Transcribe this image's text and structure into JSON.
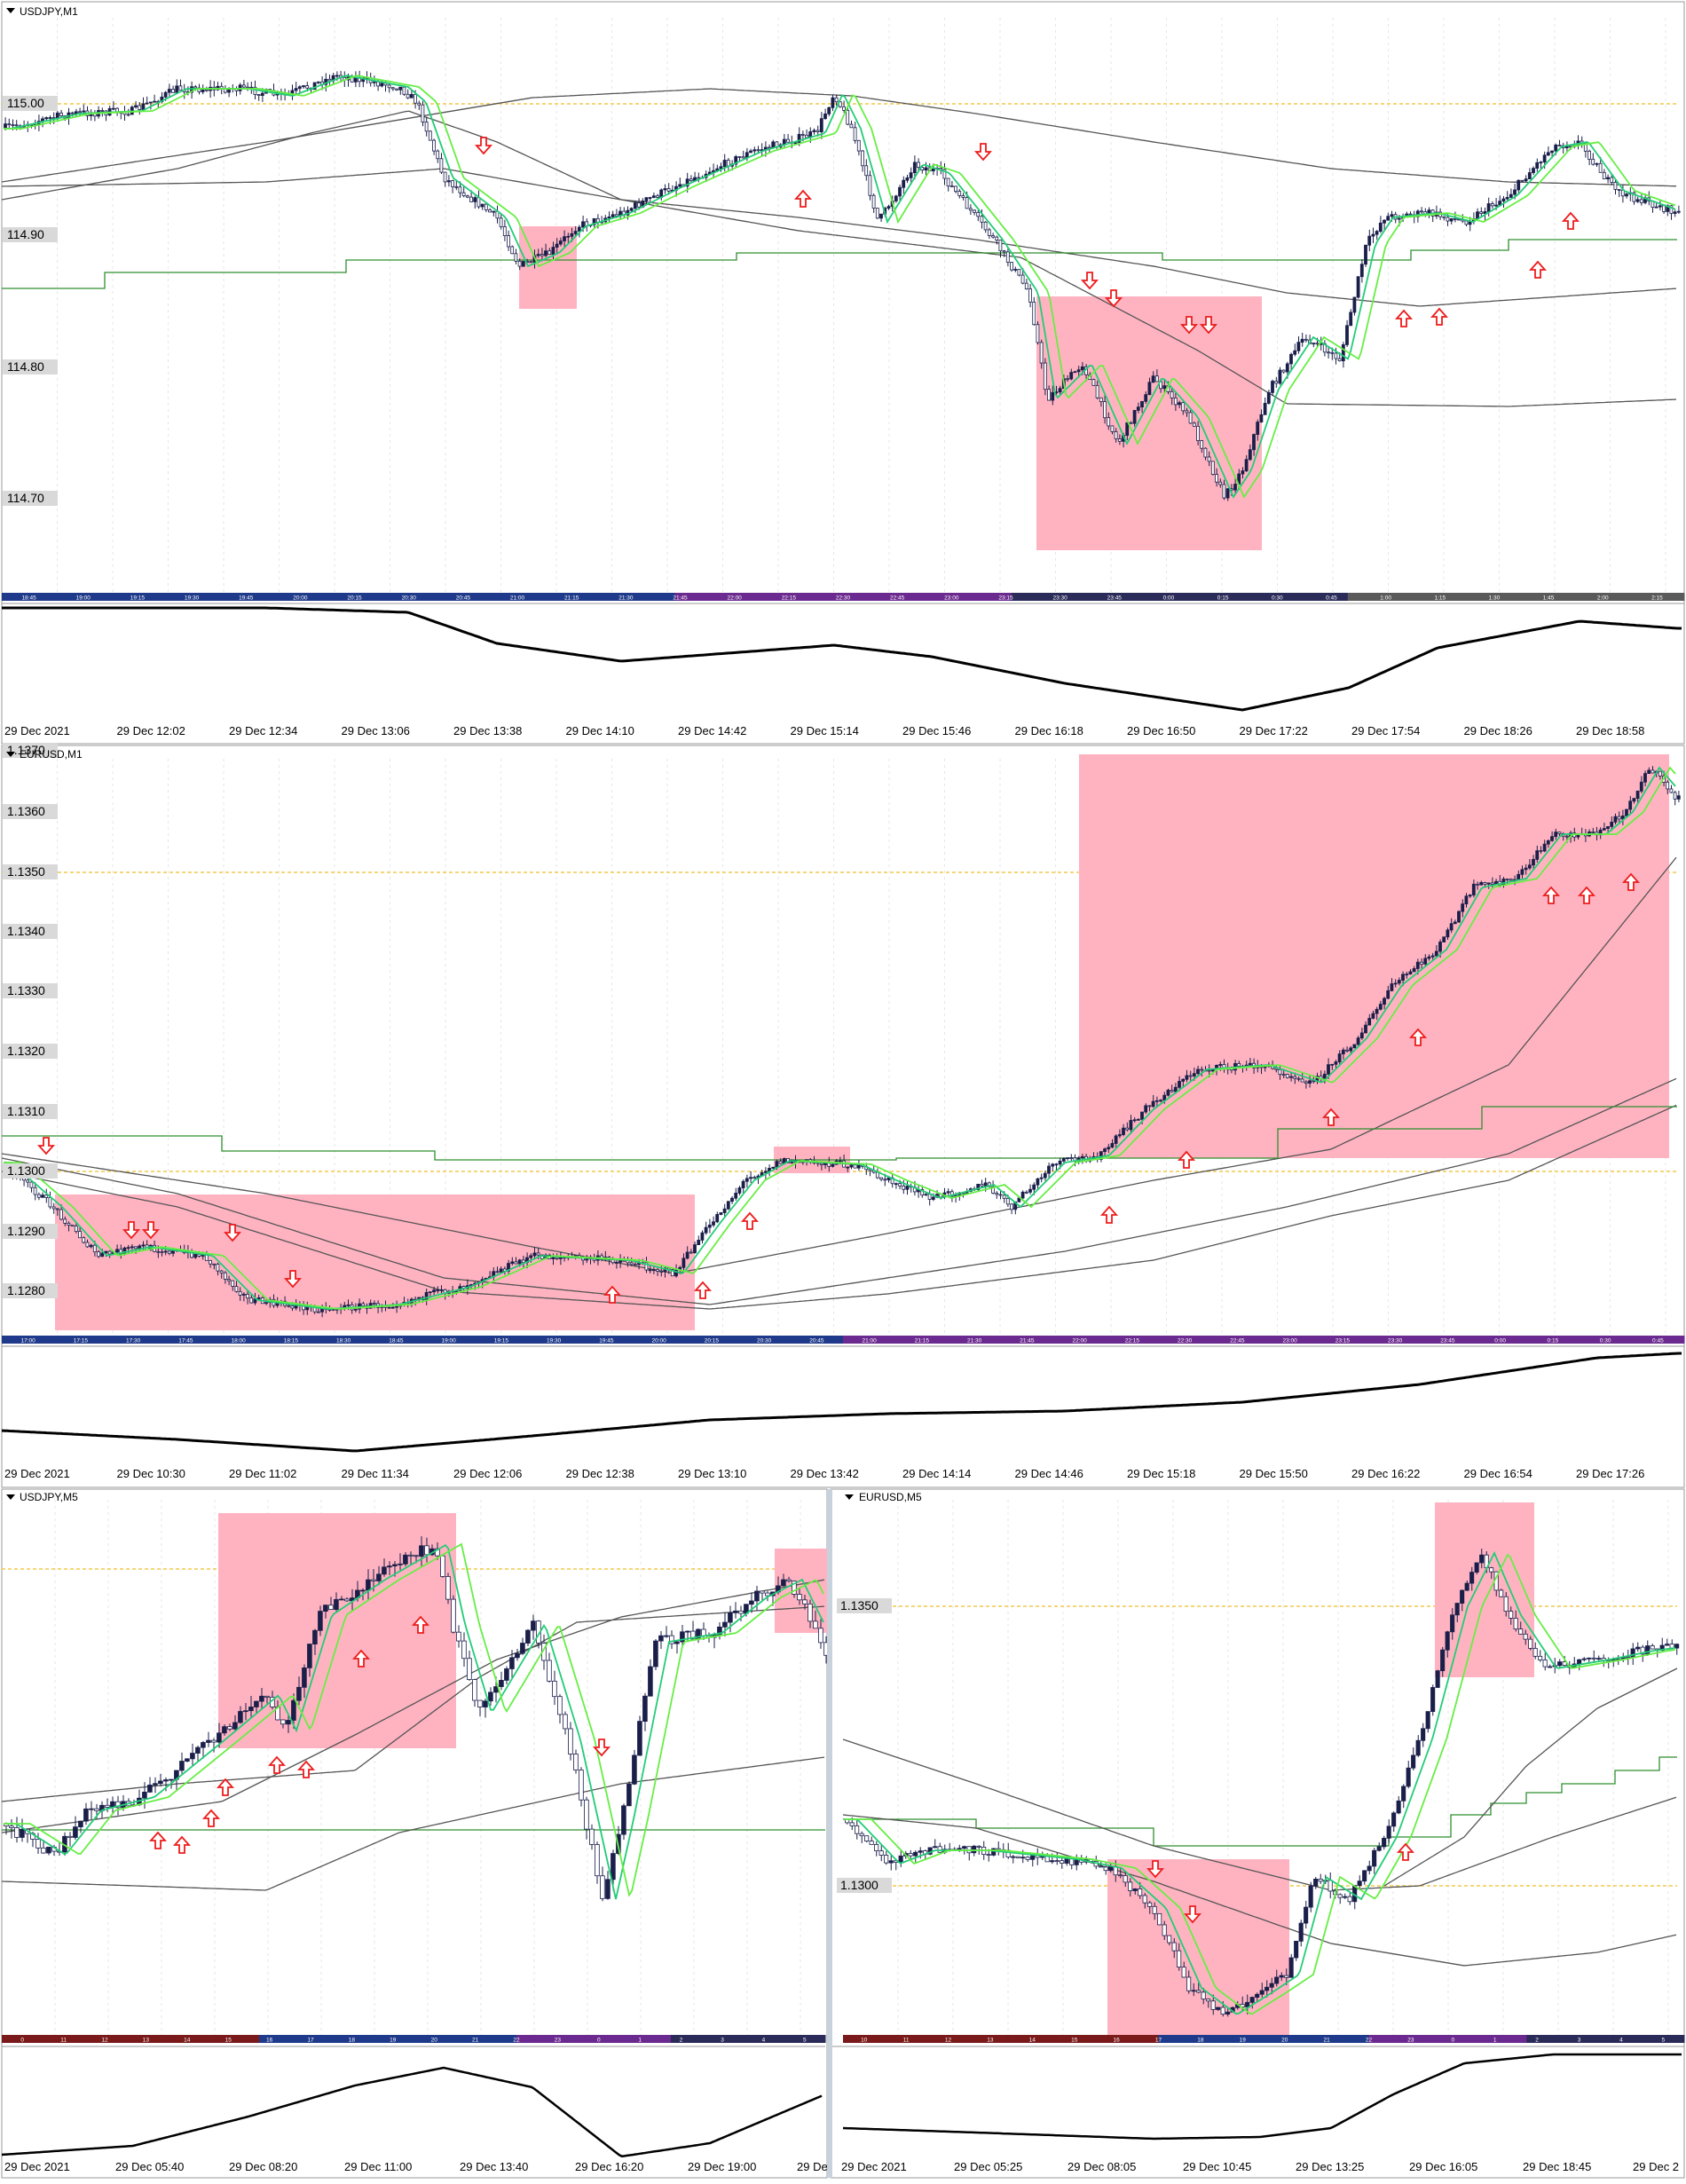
{
  "terminal": {
    "charts": [
      {
        "id": "usdjpy-m1",
        "title": "USDJPY,M1",
        "price_labels": [
          "115.00",
          "114.90",
          "114.80",
          "114.70"
        ],
        "date_labels": [
          "29 Dec 2021",
          "29 Dec 12:02",
          "29 Dec 12:34",
          "29 Dec 13:06",
          "29 Dec 13:38",
          "29 Dec 14:10",
          "29 Dec 14:42",
          "29 Dec 15:14",
          "29 Dec 15:46",
          "29 Dec 16:18",
          "29 Dec 16:50",
          "29 Dec 17:22",
          "29 Dec 17:54",
          "29 Dec 18:26",
          "29 Dec 18:58"
        ],
        "session_labels": [
          "18:45",
          "19:00",
          "19:15",
          "19:30",
          "19:45",
          "20:00",
          "20:15",
          "20:30",
          "20:45",
          "21:00",
          "21:15",
          "21:30",
          "21:45",
          "22:00",
          "22:15",
          "22:30",
          "22:45",
          "23:00",
          "23:15",
          "23:30",
          "23:45",
          "0:00",
          "0:15",
          "0:30",
          "0:45",
          "1:00",
          "1:15",
          "1:30",
          "1:45",
          "2:00",
          "2:15"
        ]
      },
      {
        "id": "eurusd-m1",
        "title": "EURUSD,M1",
        "price_labels": [
          "1.1370",
          "1.1360",
          "1.1350",
          "1.1340",
          "1.1330",
          "1.1320",
          "1.1310",
          "1.1300",
          "1.1290",
          "1.1280"
        ],
        "date_labels": [
          "29 Dec 2021",
          "29 Dec 10:30",
          "29 Dec 11:02",
          "29 Dec 11:34",
          "29 Dec 12:06",
          "29 Dec 12:38",
          "29 Dec 13:10",
          "29 Dec 13:42",
          "29 Dec 14:14",
          "29 Dec 14:46",
          "29 Dec 15:18",
          "29 Dec 15:50",
          "29 Dec 16:22",
          "29 Dec 16:54",
          "29 Dec 17:26"
        ],
        "session_labels": [
          "17:00",
          "17:15",
          "17:30",
          "17:45",
          "18:00",
          "18:15",
          "18:30",
          "18:45",
          "19:00",
          "19:15",
          "19:30",
          "19:45",
          "20:00",
          "20:15",
          "20:30",
          "20:45",
          "21:00",
          "21:15",
          "21:30",
          "21:45",
          "22:00",
          "22:15",
          "22:30",
          "22:45",
          "23:00",
          "23:15",
          "23:30",
          "23:45",
          "0:00",
          "0:15",
          "0:30",
          "0:45"
        ]
      },
      {
        "id": "usdjpy-m5",
        "title": "USDJPY,M5",
        "price_labels": [],
        "date_labels": [
          "29 Dec 2021",
          "29 Dec 05:40",
          "29 Dec 08:20",
          "29 Dec 11:00",
          "29 Dec 13:40",
          "29 Dec 16:20",
          "29 Dec 19:00",
          "29 De"
        ],
        "session_labels": [
          "0",
          "11",
          "12",
          "13",
          "14",
          "15",
          "16",
          "17",
          "18",
          "19",
          "20",
          "21",
          "22",
          "23",
          "0",
          "1",
          "2",
          "3",
          "4",
          "5"
        ]
      },
      {
        "id": "eurusd-m5",
        "title": "EURUSD,M5",
        "price_labels": [
          "1.1350",
          "1.1300"
        ],
        "date_labels": [
          "29 Dec 2021",
          "29 Dec 05:25",
          "29 Dec 08:05",
          "29 Dec 10:45",
          "29 Dec 13:25",
          "29 Dec 16:05",
          "29 Dec 18:45",
          "29 Dec 2"
        ],
        "session_labels": [
          "10",
          "11",
          "12",
          "13",
          "14",
          "15",
          "16",
          "17",
          "18",
          "19",
          "20",
          "21",
          "22",
          "23",
          "0",
          "1",
          "2",
          "3",
          "4",
          "5"
        ]
      }
    ],
    "colors": {
      "candle": "#1a1f4a",
      "ma_fast": "#22cc77",
      "ma_slow": "#66ee44",
      "ma_long": "#2a2a2a",
      "level_line": "#2f8f2f",
      "dotted_level": "#f2c84b",
      "zone_fill": "#ffb3c1",
      "arrow": "#ee1c1c",
      "label_bg": "#d9d9d9",
      "oscillator": "#000000"
    }
  }
}
